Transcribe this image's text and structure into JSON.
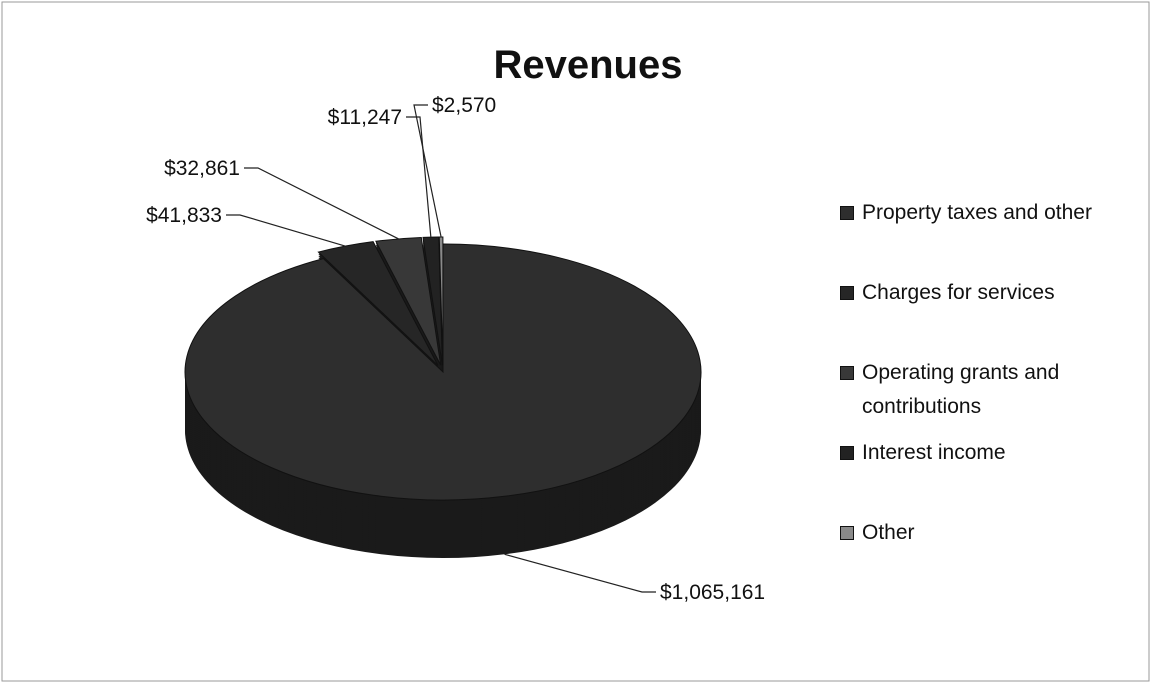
{
  "chart_data": {
    "type": "pie",
    "title": "Revenues",
    "categories": [
      "Property taxes and other",
      "Charges for services",
      "Operating grants and contributions",
      "Interest income",
      "Other"
    ],
    "values": [
      1065161,
      41833,
      32861,
      11247,
      2570
    ],
    "value_labels": [
      "$1,065,161",
      "$41,833",
      "$32,861",
      "$11,247",
      "$2,570"
    ],
    "colors": [
      "#2e2e2e",
      "#262626",
      "#383838",
      "#222222",
      "#8a8a8a"
    ]
  }
}
